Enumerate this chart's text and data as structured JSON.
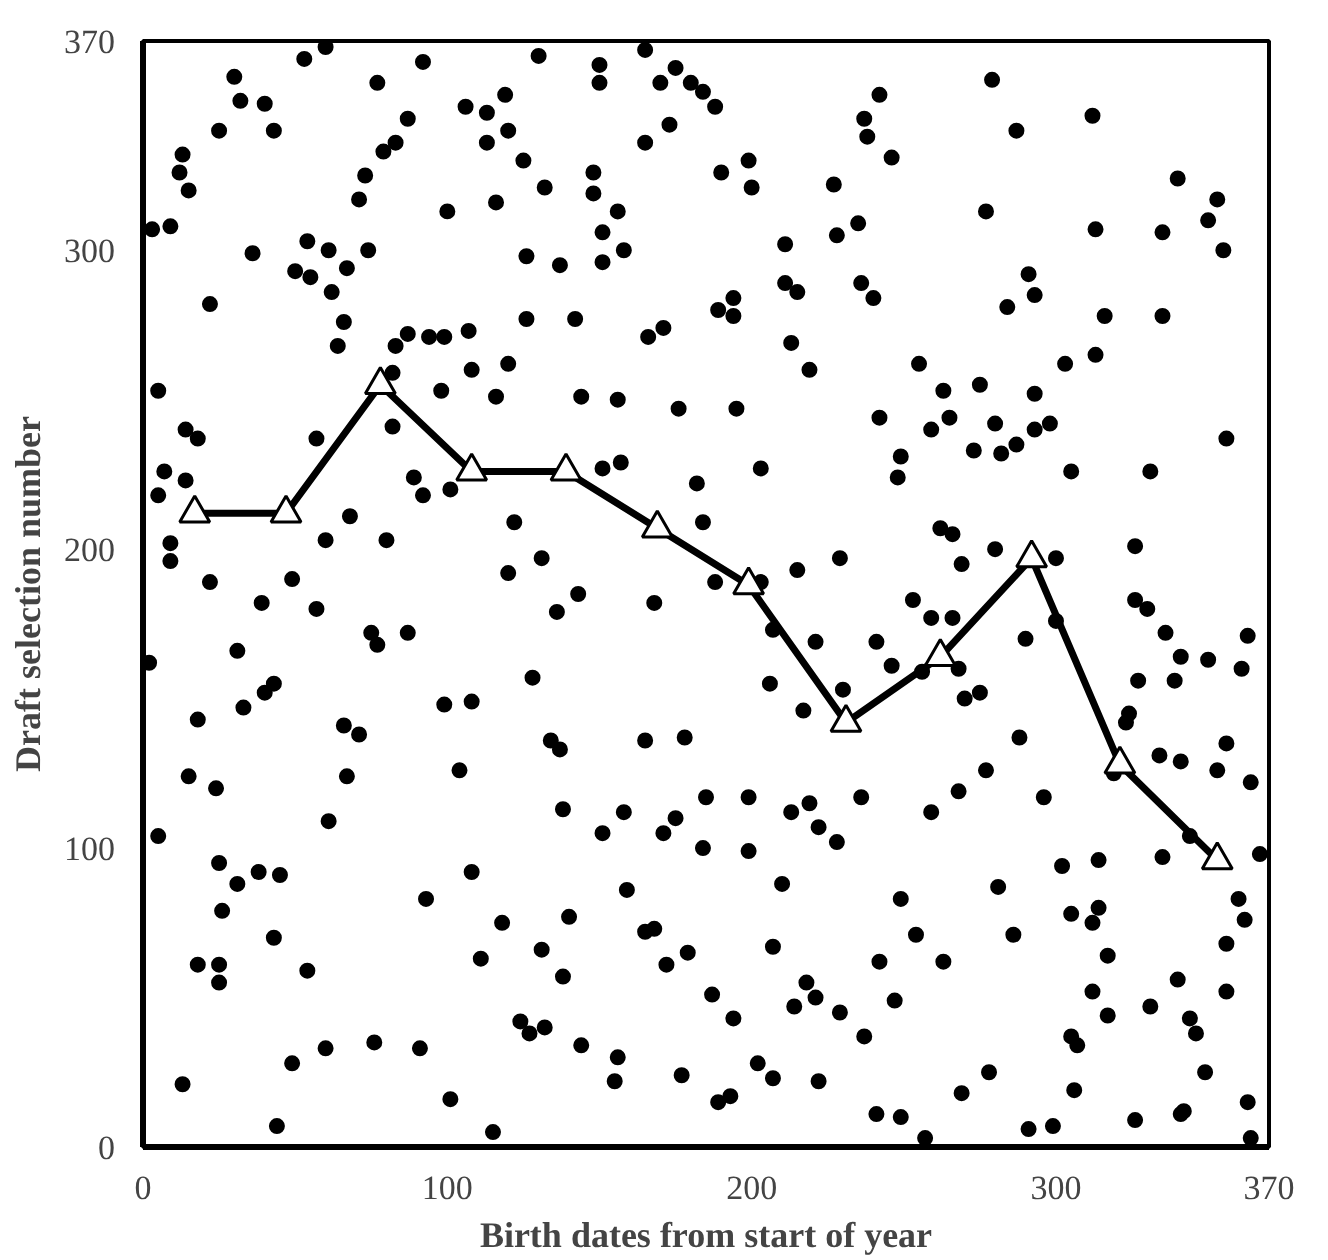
{
  "chart_data": {
    "type": "scatter",
    "xlabel": "Birth dates from start of year",
    "ylabel": "Draft selection number",
    "xlim": [
      0,
      370
    ],
    "ylim": [
      0,
      370
    ],
    "xticks": [
      0,
      100,
      200,
      300,
      370
    ],
    "yticks": [
      0,
      100,
      200,
      300,
      370
    ],
    "grid": false,
    "series": [
      {
        "marker": "circle",
        "color": "#000000",
        "x": [
          3,
          9,
          13,
          12,
          15,
          22,
          25,
          30,
          32,
          40,
          43,
          36,
          53,
          60,
          54,
          50,
          55,
          61,
          62,
          67,
          66,
          64,
          71,
          73,
          74,
          77,
          79,
          83,
          87,
          92,
          83,
          87,
          94,
          99,
          107,
          100,
          106,
          113,
          113,
          116,
          119,
          120,
          125,
          130,
          132,
          126,
          137,
          126,
          142,
          150,
          150,
          148,
          148,
          156,
          151,
          158,
          151,
          108,
          120,
          116,
          98,
          82,
          82,
          5,
          14,
          18,
          7,
          14,
          5,
          9,
          57,
          60,
          68,
          80,
          89,
          92,
          101,
          122,
          144,
          156,
          151,
          157,
          165,
          175,
          170,
          180,
          184,
          188,
          173,
          165,
          190,
          199,
          200,
          211,
          227,
          228,
          235,
          237,
          238,
          242,
          246,
          279,
          287,
          312,
          277,
          313,
          335,
          340,
          353,
          350,
          355,
          211,
          215,
          236,
          240,
          291,
          293,
          284,
          316,
          335,
          194,
          189,
          194,
          171,
          166,
          213,
          219,
          255,
          263,
          275,
          293,
          303,
          313,
          176,
          195,
          242,
          265,
          259,
          280,
          298,
          293,
          287,
          282,
          273,
          356,
          249,
          248,
          203,
          182,
          305,
          331,
          184,
          262,
          266,
          280,
          326,
          9,
          22,
          39,
          49,
          57,
          2,
          18,
          31,
          33,
          40,
          43,
          15,
          24,
          66,
          71,
          67,
          61,
          75,
          77,
          87,
          5,
          25,
          31,
          38,
          45,
          26,
          43,
          18,
          25,
          25,
          54,
          13,
          44,
          49,
          60,
          76,
          91,
          101,
          115,
          93,
          108,
          104,
          99,
          108,
          120,
          131,
          136,
          143,
          128,
          134,
          137,
          138,
          151,
          158,
          159,
          140,
          131,
          118,
          111,
          124,
          127,
          132,
          138,
          144,
          156,
          155,
          168,
          188,
          215,
          229,
          269,
          203,
          207,
          221,
          241,
          253,
          259,
          266,
          256,
          268,
          246,
          270,
          275,
          290,
          300,
          300,
          326,
          330,
          336,
          341,
          350,
          363,
          361,
          339,
          327,
          206,
          217,
          230,
          324,
          323,
          334,
          341,
          319,
          356,
          353,
          364,
          288,
          277,
          296,
          268,
          259,
          236,
          219,
          213,
          222,
          228,
          199,
          199,
          185,
          175,
          171,
          178,
          165,
          184,
          210,
          249,
          281,
          302,
          314,
          335,
          344,
          367,
          360,
          362,
          356,
          305,
          314,
          312,
          317,
          286,
          254,
          263,
          242,
          207,
          179,
          172,
          168,
          165,
          218,
          221,
          214,
          229,
          247,
          187,
          194,
          237,
          202,
          207,
          222,
          177,
          189,
          193,
          241,
          249,
          257,
          269,
          278,
          291,
          299,
          306,
          305,
          307,
          312,
          317,
          331,
          340,
          344,
          346,
          349,
          356,
          326,
          341,
          342,
          363,
          364
        ],
        "values": [
          307,
          308,
          332,
          326,
          320,
          282,
          340,
          358,
          350,
          349,
          340,
          299,
          364,
          368,
          303,
          293,
          291,
          300,
          286,
          294,
          276,
          268,
          317,
          325,
          300,
          356,
          333,
          336,
          344,
          363,
          268,
          272,
          271,
          271,
          273,
          313,
          348,
          346,
          336,
          316,
          352,
          340,
          330,
          365,
          321,
          298,
          295,
          277,
          277,
          362,
          356,
          326,
          319,
          313,
          306,
          300,
          296,
          260,
          262,
          251,
          253,
          241,
          259,
          253,
          240,
          237,
          226,
          223,
          218,
          202,
          237,
          203,
          211,
          203,
          224,
          218,
          220,
          209,
          251,
          250,
          227,
          229,
          367,
          361,
          356,
          356,
          353,
          348,
          342,
          336,
          326,
          330,
          321,
          302,
          322,
          305,
          309,
          344,
          338,
          352,
          331,
          357,
          340,
          345,
          313,
          307,
          306,
          324,
          317,
          310,
          300,
          289,
          286,
          289,
          284,
          292,
          285,
          281,
          278,
          278,
          284,
          280,
          278,
          274,
          271,
          269,
          260,
          262,
          253,
          255,
          252,
          262,
          265,
          247,
          247,
          244,
          244,
          240,
          242,
          242,
          240,
          235,
          232,
          233,
          237,
          231,
          224,
          227,
          222,
          226,
          226,
          209,
          207,
          205,
          200,
          201,
          196,
          189,
          182,
          190,
          180,
          162,
          143,
          166,
          147,
          152,
          155,
          124,
          120,
          141,
          138,
          124,
          109,
          172,
          168,
          172,
          104,
          95,
          88,
          92,
          91,
          79,
          70,
          61,
          61,
          55,
          59,
          21,
          7,
          28,
          33,
          35,
          33,
          16,
          5,
          83,
          92,
          126,
          148,
          149,
          192,
          197,
          179,
          185,
          157,
          136,
          133,
          113,
          105,
          112,
          86,
          77,
          66,
          75,
          63,
          42,
          38,
          40,
          57,
          34,
          30,
          22,
          182,
          189,
          193,
          197,
          195,
          189,
          173,
          169,
          169,
          183,
          177,
          177,
          159,
          160,
          161,
          150,
          152,
          170,
          197,
          176,
          183,
          180,
          172,
          164,
          163,
          171,
          160,
          156,
          156,
          155,
          146,
          153,
          145,
          142,
          131,
          129,
          125,
          135,
          126,
          122,
          137,
          126,
          117,
          119,
          112,
          117,
          115,
          112,
          107,
          102,
          117,
          99,
          117,
          110,
          105,
          137,
          136,
          100,
          88,
          83,
          87,
          94,
          96,
          97,
          104,
          98,
          83,
          76,
          68,
          78,
          80,
          75,
          64,
          71,
          71,
          62,
          62,
          67,
          65,
          61,
          73,
          72,
          55,
          50,
          47,
          45,
          49,
          51,
          43,
          37,
          28,
          23,
          22,
          24,
          15,
          17,
          11,
          10,
          3,
          18,
          25,
          6,
          7,
          19,
          37,
          34,
          52,
          44,
          47,
          56,
          43,
          38,
          25,
          52,
          9,
          11,
          12,
          15,
          3
        ]
      },
      {
        "type": "line",
        "marker": "triangle",
        "color": "#000000",
        "line_style": "solid",
        "x": [
          17,
          47,
          78,
          108,
          139,
          169,
          199,
          231,
          262,
          292,
          321,
          353
        ],
        "values": [
          212,
          212,
          255,
          226,
          226,
          207,
          188,
          142,
          164,
          197,
          128,
          96
        ]
      }
    ]
  }
}
